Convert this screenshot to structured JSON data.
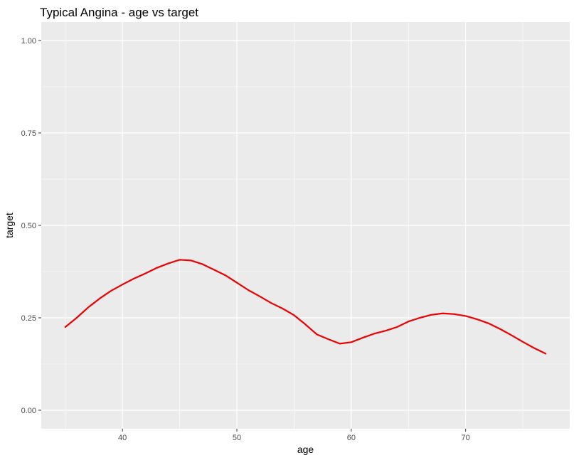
{
  "chart_data": {
    "type": "line",
    "title": "Typical Angina - age vs target",
    "xlabel": "age",
    "ylabel": "target",
    "xlim": [
      32.9,
      79.1
    ],
    "ylim": [
      -0.05,
      1.05
    ],
    "x_ticks": [
      40,
      50,
      60,
      70
    ],
    "x_tick_labels": [
      "40",
      "50",
      "60",
      "70"
    ],
    "y_ticks": [
      0,
      0.25,
      0.5,
      0.75,
      1
    ],
    "y_tick_labels": [
      "0.00",
      "0.25",
      "0.50",
      "0.75",
      "1.00"
    ],
    "grid": true,
    "background": "#ebebeb",
    "gridline_color": "#ffffff",
    "series": [
      {
        "color": "#ee0000",
        "x": [
          35,
          36,
          37,
          38,
          39,
          40,
          41,
          42,
          43,
          44,
          45,
          46,
          47,
          48,
          49,
          50,
          51,
          52,
          53,
          54,
          55,
          56,
          57,
          58,
          59,
          60,
          61,
          62,
          63,
          64,
          65,
          66,
          67,
          68,
          69,
          70,
          71,
          72,
          73,
          74,
          75,
          76,
          77
        ],
        "y": [
          0.225,
          0.25,
          0.278,
          0.302,
          0.323,
          0.34,
          0.356,
          0.37,
          0.385,
          0.397,
          0.407,
          0.405,
          0.395,
          0.38,
          0.365,
          0.345,
          0.325,
          0.308,
          0.29,
          0.275,
          0.257,
          0.232,
          0.205,
          0.192,
          0.18,
          0.184,
          0.196,
          0.207,
          0.215,
          0.225,
          0.24,
          0.25,
          0.258,
          0.262,
          0.26,
          0.255,
          0.246,
          0.235,
          0.22,
          0.203,
          0.185,
          0.168,
          0.153
        ]
      }
    ]
  }
}
